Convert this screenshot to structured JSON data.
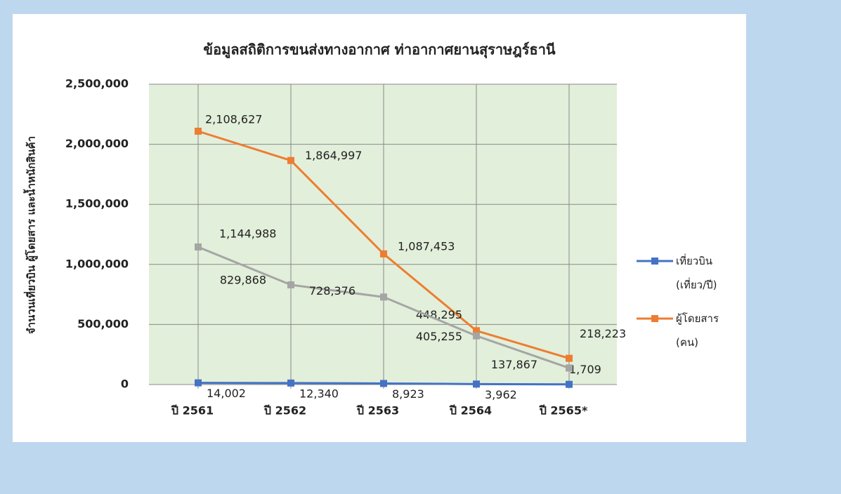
{
  "chart_data": {
    "type": "line",
    "title": "ข้อมูลสถิติการขนส่งทางอากาศ ท่าอากาศยานสุราษฎร์ธานี",
    "y_label": "จำนวนเที่ยวบิน ผู้โดยสาร และน้ำหนักสินค้า",
    "categories": [
      "ปี 2561",
      "ปี 2562",
      "ปี 2563",
      "ปี 2564",
      "ปี 2565*"
    ],
    "series": [
      {
        "name": "เที่ยวบิน (เที่ยว/ปี)",
        "color": "#4472c4",
        "values": [
          14002,
          12340,
          8923,
          3962,
          1709
        ],
        "value_labels": [
          "14,002",
          "12,340",
          "8,923",
          "3,962",
          "1,709"
        ]
      },
      {
        "name": "ผู้โดยสาร (คน)",
        "color": "#ed7d31",
        "values": [
          2108627,
          1864997,
          1087453,
          448295,
          218223
        ],
        "value_labels": [
          "2,108,627",
          "1,864,997",
          "1,087,453",
          "448,295",
          "218,223"
        ]
      },
      {
        "color": "#a5a5a5",
        "values": [
          1144988,
          829868,
          728376,
          405255,
          137867
        ],
        "value_labels": [
          "1,144,988",
          "829,868",
          "728,376",
          "405,255",
          "137,867"
        ]
      }
    ],
    "ylim": [
      0,
      2500000
    ],
    "yticks": [
      0,
      {
        "value": 500000,
        "label": "500,000"
      },
      {
        "value": 1000000,
        "label": "1,000,000"
      },
      {
        "value": 1500000,
        "label": "1,500,000"
      },
      {
        "value": 2000000,
        "label": "2,000,000"
      },
      {
        "value": 2500000,
        "label": "2,500,000"
      }
    ],
    "grid": true,
    "legend": "right"
  }
}
